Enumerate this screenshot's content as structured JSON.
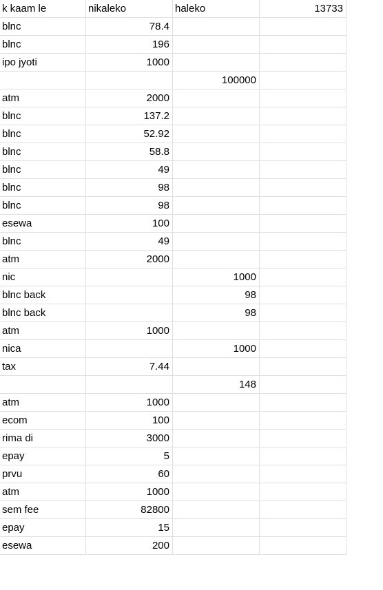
{
  "header": {
    "col_a": "k kaam le",
    "col_b": "nikaleko",
    "col_c": "haleko",
    "col_d": "13733"
  },
  "rows": [
    {
      "item": "blnc",
      "nikaleko": "78.4",
      "haleko": ""
    },
    {
      "item": "blnc",
      "nikaleko": "196",
      "haleko": ""
    },
    {
      "item": "ipo jyoti",
      "nikaleko": "1000",
      "haleko": ""
    },
    {
      "item": "",
      "nikaleko": "",
      "haleko": "100000"
    },
    {
      "item": "atm",
      "nikaleko": "2000",
      "haleko": ""
    },
    {
      "item": "blnc",
      "nikaleko": "137.2",
      "haleko": ""
    },
    {
      "item": "blnc",
      "nikaleko": "52.92",
      "haleko": ""
    },
    {
      "item": "blnc",
      "nikaleko": "58.8",
      "haleko": ""
    },
    {
      "item": "blnc",
      "nikaleko": "49",
      "haleko": ""
    },
    {
      "item": "blnc",
      "nikaleko": "98",
      "haleko": ""
    },
    {
      "item": "blnc",
      "nikaleko": "98",
      "haleko": ""
    },
    {
      "item": "esewa",
      "nikaleko": "100",
      "haleko": ""
    },
    {
      "item": "blnc",
      "nikaleko": "49",
      "haleko": ""
    },
    {
      "item": "atm",
      "nikaleko": "2000",
      "haleko": ""
    },
    {
      "item": "nic",
      "nikaleko": "",
      "haleko": "1000"
    },
    {
      "item": "blnc back",
      "nikaleko": "",
      "haleko": "98"
    },
    {
      "item": "blnc back",
      "nikaleko": "",
      "haleko": "98"
    },
    {
      "item": "atm",
      "nikaleko": "1000",
      "haleko": ""
    },
    {
      "item": "nica",
      "nikaleko": "",
      "haleko": "1000"
    },
    {
      "item": "tax",
      "nikaleko": "7.44",
      "haleko": ""
    },
    {
      "item": "",
      "nikaleko": "",
      "haleko": "148"
    },
    {
      "item": "atm",
      "nikaleko": "1000",
      "haleko": ""
    },
    {
      "item": "ecom",
      "nikaleko": "100",
      "haleko": ""
    },
    {
      "item": "rima di",
      "nikaleko": "3000",
      "haleko": ""
    },
    {
      "item": "epay",
      "nikaleko": "5",
      "haleko": ""
    },
    {
      "item": "prvu",
      "nikaleko": "60",
      "haleko": ""
    },
    {
      "item": "atm",
      "nikaleko": "1000",
      "haleko": ""
    },
    {
      "item": "sem fee",
      "nikaleko": "82800",
      "haleko": ""
    },
    {
      "item": "epay",
      "nikaleko": "15",
      "haleko": ""
    },
    {
      "item": "esewa",
      "nikaleko": "200",
      "haleko": ""
    }
  ]
}
